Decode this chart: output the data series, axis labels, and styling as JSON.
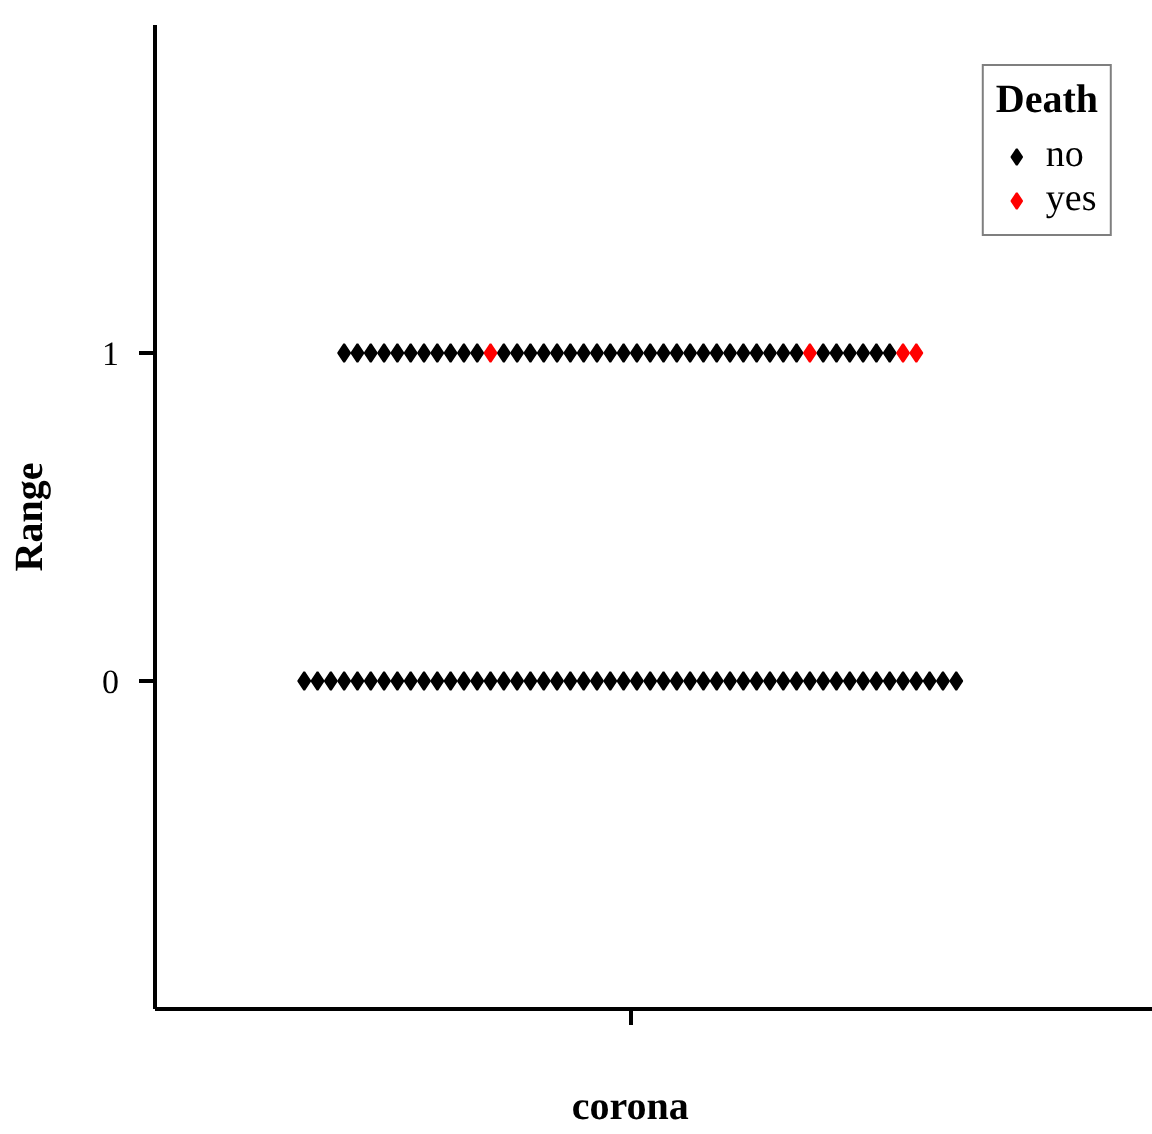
{
  "chart_data": {
    "type": "scatter",
    "categories": [
      "corona"
    ],
    "ylabel": "Range",
    "legend_title": "Death",
    "legend": "top right",
    "marker": "diamond",
    "grid": false,
    "ylim": [
      -1,
      2
    ],
    "yticks": [
      0,
      1
    ],
    "series": [
      {
        "name": "no",
        "color": "#000000",
        "x": [
          "corona",
          "corona",
          "corona",
          "corona",
          "corona",
          "corona",
          "corona",
          "corona",
          "corona",
          "corona",
          "corona",
          "corona",
          "corona",
          "corona",
          "corona",
          "corona",
          "corona",
          "corona",
          "corona",
          "corona",
          "corona",
          "corona",
          "corona",
          "corona",
          "corona",
          "corona",
          "corona",
          "corona",
          "corona",
          "corona",
          "corona",
          "corona",
          "corona",
          "corona",
          "corona",
          "corona",
          "corona",
          "corona",
          "corona",
          "corona",
          "corona",
          "corona",
          "corona",
          "corona",
          "corona",
          "corona",
          "corona",
          "corona",
          "corona",
          "corona",
          "corona",
          "corona",
          "corona",
          "corona",
          "corona",
          "corona",
          "corona",
          "corona",
          "corona",
          "corona",
          "corona",
          "corona",
          "corona",
          "corona",
          "corona",
          "corona",
          "corona",
          "corona",
          "corona",
          "corona",
          "corona",
          "corona",
          "corona",
          "corona",
          "corona",
          "corona",
          "corona",
          "corona",
          "corona",
          "corona",
          "corona",
          "corona",
          "corona",
          "corona",
          "corona",
          "corona",
          "corona",
          "corona",
          "corona",
          "corona"
        ],
        "values": [
          1,
          1,
          1,
          1,
          1,
          1,
          1,
          1,
          1,
          1,
          1,
          1,
          1,
          1,
          1,
          1,
          1,
          1,
          1,
          1,
          1,
          1,
          1,
          1,
          1,
          1,
          1,
          1,
          1,
          1,
          1,
          1,
          1,
          1,
          1,
          1,
          1,
          1,
          1,
          1,
          0,
          0,
          0,
          0,
          0,
          0,
          0,
          0,
          0,
          0,
          0,
          0,
          0,
          0,
          0,
          0,
          0,
          0,
          0,
          0,
          0,
          0,
          0,
          0,
          0,
          0,
          0,
          0,
          0,
          0,
          0,
          0,
          0,
          0,
          0,
          0,
          0,
          0,
          0,
          0,
          0,
          0,
          0,
          0,
          0,
          0,
          0,
          0,
          0,
          0
        ]
      },
      {
        "name": "yes",
        "color": "#ff0000",
        "x": [
          "corona",
          "corona",
          "corona",
          "corona"
        ],
        "values": [
          1,
          1,
          1,
          1
        ]
      }
    ]
  }
}
